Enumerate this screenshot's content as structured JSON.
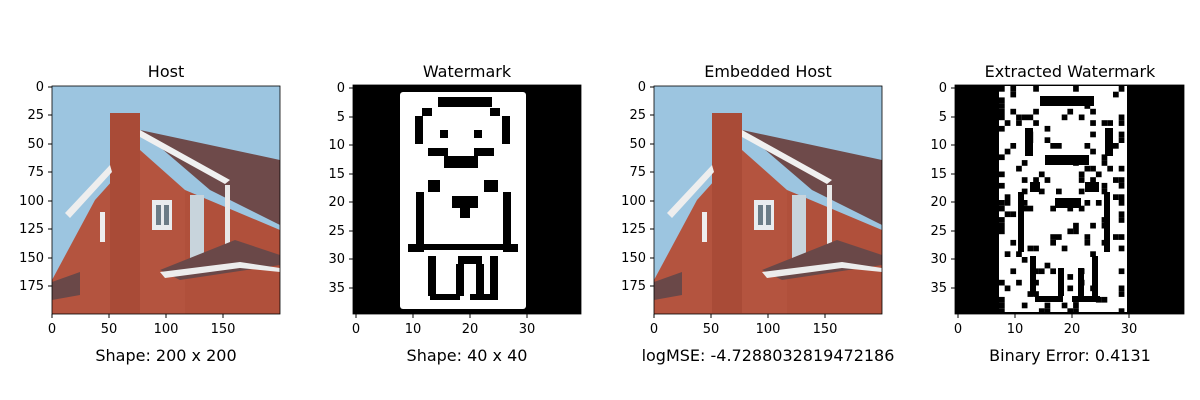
{
  "chart_data": [
    {
      "type": "image",
      "title": "Host",
      "caption": "Shape: 200 x 200",
      "image_size": [
        200,
        200
      ],
      "xticks": [
        0,
        50,
        100,
        150
      ],
      "yticks": [
        0,
        25,
        50,
        75,
        100,
        125,
        150,
        175
      ],
      "content": "photograph of a red brick house with a chimney and white trim against blue sky"
    },
    {
      "type": "binary-image",
      "title": "Watermark",
      "caption": "Shape: 40 x 40",
      "image_size": [
        40,
        40
      ],
      "xticks": [
        0,
        10,
        20,
        30
      ],
      "yticks": [
        0,
        5,
        10,
        15,
        20,
        25,
        30,
        35
      ],
      "content": "black-and-white pixel-art stick figure on white panel"
    },
    {
      "type": "image",
      "title": "Embedded Host",
      "caption": "logMSE: -4.7288032819472186",
      "image_size": [
        200,
        200
      ],
      "xticks": [
        0,
        50,
        100,
        150
      ],
      "yticks": [
        0,
        25,
        50,
        75,
        100,
        125,
        150,
        175
      ],
      "content": "photograph of a red brick house with a chimney and white trim against blue sky"
    },
    {
      "type": "binary-image",
      "title": "Extracted Watermark",
      "caption": "Binary Error: 0.4131",
      "image_size": [
        40,
        40
      ],
      "xticks": [
        0,
        10,
        20,
        30
      ],
      "yticks": [
        0,
        5,
        10,
        15,
        20,
        25,
        30,
        35
      ],
      "binary_error": 0.4131,
      "content": "noisy black-and-white pixel-art stick figure on white panel"
    }
  ],
  "colors": {
    "sky": "#9cc5e0",
    "brick": "#b4543f",
    "brick_dark": "#8f3f30",
    "roof": "#6e4a4a",
    "trim": "#f2f2f2",
    "ground": "#4f7a3b"
  }
}
